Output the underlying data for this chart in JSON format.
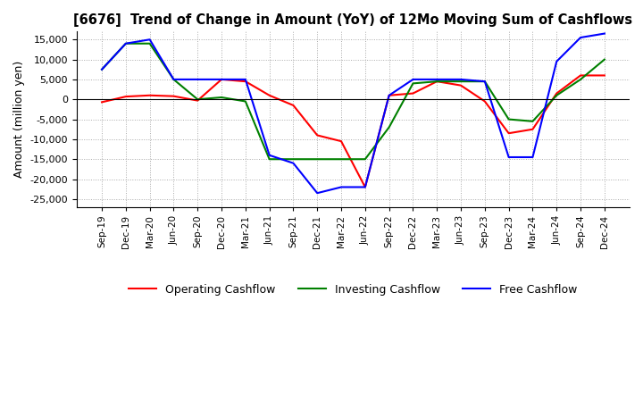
{
  "title": "[6676]  Trend of Change in Amount (YoY) of 12Mo Moving Sum of Cashflows",
  "ylabel": "Amount (million yen)",
  "ylim": [
    -27000,
    17000
  ],
  "yticks": [
    -25000,
    -20000,
    -15000,
    -10000,
    -5000,
    0,
    5000,
    10000,
    15000
  ],
  "x_labels": [
    "Sep-19",
    "Dec-19",
    "Mar-20",
    "Jun-20",
    "Sep-20",
    "Dec-20",
    "Mar-21",
    "Jun-21",
    "Sep-21",
    "Dec-21",
    "Mar-22",
    "Jun-22",
    "Sep-22",
    "Dec-22",
    "Mar-23",
    "Jun-23",
    "Sep-23",
    "Dec-23",
    "Mar-24",
    "Jun-24",
    "Sep-24",
    "Dec-24"
  ],
  "operating": [
    -700,
    700,
    1000,
    800,
    -300,
    5000,
    4500,
    1000,
    -1500,
    -9000,
    -10500,
    -22000,
    1000,
    1500,
    4500,
    3500,
    -500,
    -8500,
    -7500,
    1500,
    6000,
    6000
  ],
  "investing": [
    7500,
    14000,
    14000,
    5000,
    0,
    500,
    -500,
    -15000,
    -15000,
    -15000,
    -15000,
    -15000,
    -7000,
    4000,
    4500,
    4500,
    4500,
    -5000,
    -5500,
    1000,
    5000,
    10000
  ],
  "free": [
    7500,
    14000,
    15000,
    5000,
    5000,
    5000,
    5000,
    -14000,
    -16000,
    -23500,
    -22000,
    -22000,
    1000,
    5000,
    5000,
    5000,
    4500,
    -14500,
    -14500,
    9500,
    15500,
    16500
  ],
  "operating_color": "#ff0000",
  "investing_color": "#008000",
  "free_color": "#0000ff",
  "background_color": "#ffffff",
  "grid_color": "#aaaaaa"
}
